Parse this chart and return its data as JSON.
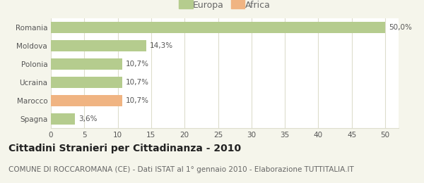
{
  "categories": [
    "Romania",
    "Moldova",
    "Polonia",
    "Ucraina",
    "Marocco",
    "Spagna"
  ],
  "values": [
    50.0,
    14.3,
    10.7,
    10.7,
    10.7,
    3.6
  ],
  "labels": [
    "50,0%",
    "14,3%",
    "10,7%",
    "10,7%",
    "10,7%",
    "3,6%"
  ],
  "colors": [
    "#b5cc8e",
    "#b5cc8e",
    "#b5cc8e",
    "#b5cc8e",
    "#f0b482",
    "#b5cc8e"
  ],
  "legend": [
    {
      "label": "Europa",
      "color": "#b5cc8e"
    },
    {
      "label": "Africa",
      "color": "#f0b482"
    }
  ],
  "xlim": [
    0,
    52
  ],
  "xticks": [
    0,
    5,
    10,
    15,
    20,
    25,
    30,
    35,
    40,
    45,
    50
  ],
  "title": "Cittadini Stranieri per Cittadinanza - 2010",
  "subtitle": "COMUNE DI ROCCAROMANA (CE) - Dati ISTAT al 1° gennaio 2010 - Elaborazione TUTTITALIA.IT",
  "background_color": "#f5f5eb",
  "bar_bg_color": "#ffffff",
  "grid_color": "#ddddcc",
  "title_fontsize": 10,
  "subtitle_fontsize": 7.5,
  "label_fontsize": 7.5,
  "tick_fontsize": 7.5,
  "legend_fontsize": 9
}
